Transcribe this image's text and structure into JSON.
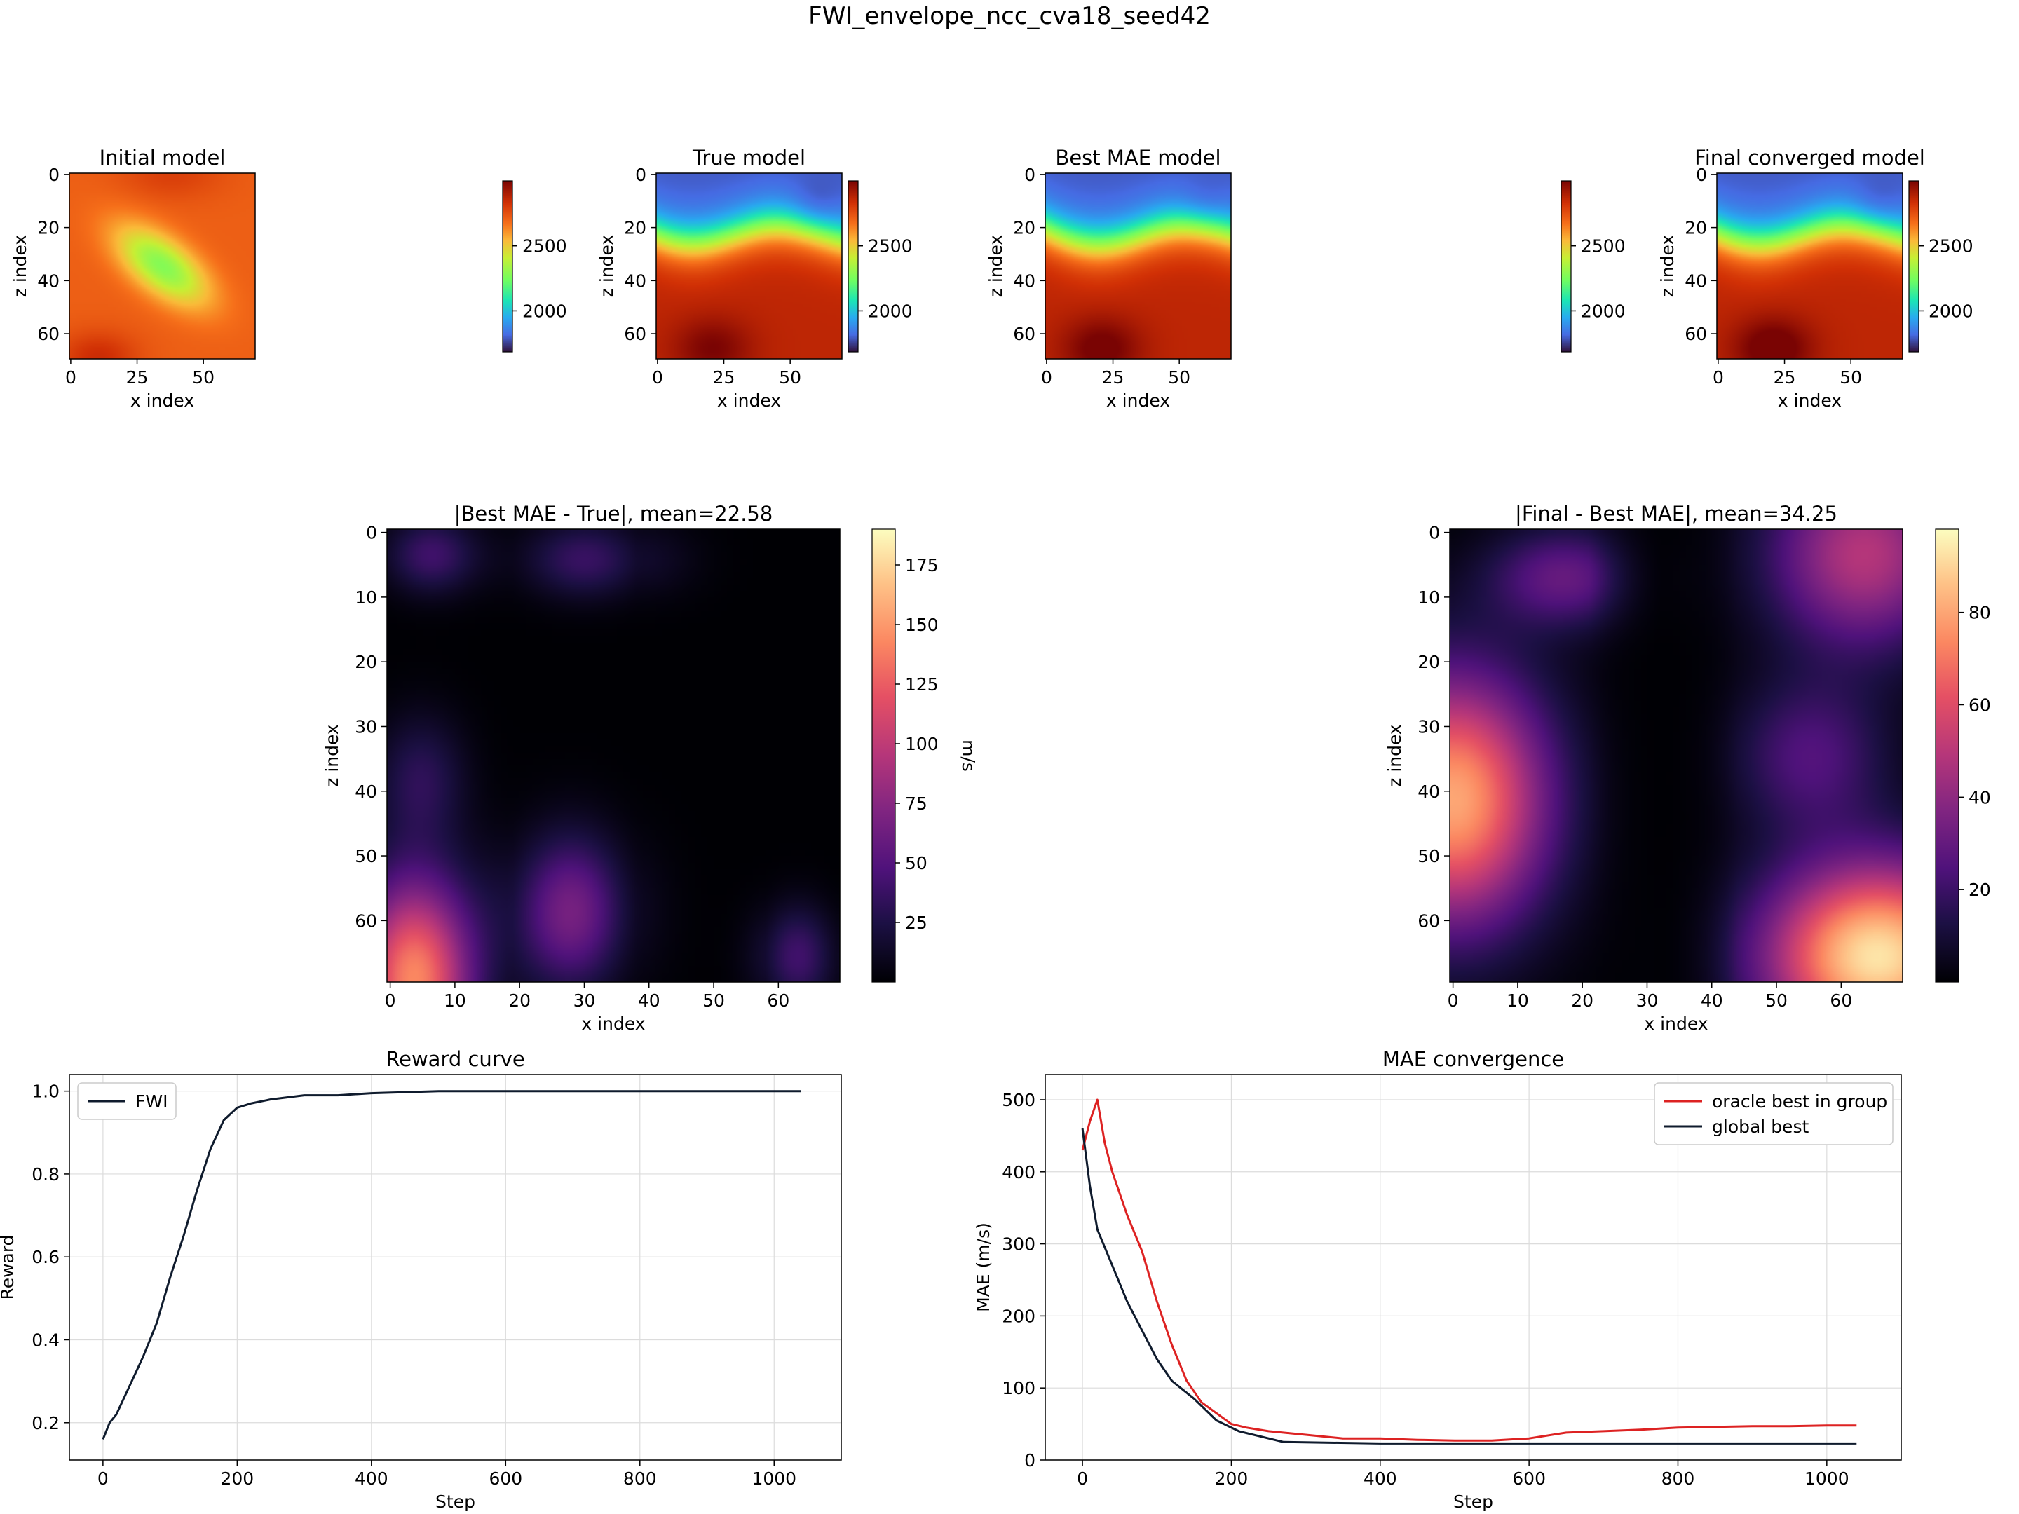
{
  "figure_title": "FWI_envelope_ncc_cva18_seed42",
  "chart_data": [
    {
      "type": "heatmap",
      "title": "Initial model",
      "xlabel": "x index",
      "ylabel": "z index",
      "xlim": [
        0,
        70
      ],
      "ylim": [
        0,
        70
      ],
      "xticks": [
        "0",
        "25",
        "50"
      ],
      "yticks": [
        "0",
        "20",
        "40",
        "60"
      ],
      "colormap": "turbo",
      "colorbar_ticks": [
        "2000",
        "2500"
      ],
      "description_field": "smooth reddish-orange background with greenish-yellow diagonal blob centered near x=35, z=35"
    },
    {
      "type": "heatmap",
      "title": "True model",
      "xlabel": "x index",
      "ylabel": "z index",
      "xticks": [
        "0",
        "25",
        "50"
      ],
      "yticks": [
        "0",
        "20",
        "40",
        "60"
      ],
      "colormap": "turbo",
      "colorbar_ticks": [
        "2000",
        "2500"
      ]
    },
    {
      "type": "heatmap",
      "title": "Best MAE model",
      "xlabel": "x index",
      "ylabel": "z index",
      "xticks": [
        "0",
        "25",
        "50"
      ],
      "yticks": [
        "0",
        "20",
        "40",
        "60"
      ],
      "colormap": "turbo",
      "colorbar_ticks": [
        "2000",
        "2500"
      ]
    },
    {
      "type": "heatmap",
      "title": "Final converged model",
      "xlabel": "x index",
      "ylabel": "z index",
      "xticks": [
        "0",
        "25",
        "50"
      ],
      "yticks": [
        "0",
        "20",
        "40",
        "60"
      ],
      "colormap": "turbo",
      "colorbar_ticks": [
        "2000",
        "2500"
      ]
    },
    {
      "type": "heatmap",
      "title": "|Best MAE - True|, mean=22.58",
      "xlabel": "x index",
      "ylabel": "z index",
      "xticks": [
        "0",
        "10",
        "20",
        "30",
        "40",
        "50",
        "60"
      ],
      "yticks": [
        "0",
        "10",
        "20",
        "30",
        "40",
        "50",
        "60"
      ],
      "colormap": "magma",
      "colorbar_label": "m/s",
      "colorbar_ticks": [
        "25",
        "50",
        "75",
        "100",
        "125",
        "150",
        "175"
      ],
      "colorbar_range": [
        0,
        190
      ]
    },
    {
      "type": "heatmap",
      "title": "|Final - Best MAE|, mean=34.25",
      "xlabel": "x index",
      "ylabel": "z index",
      "xticks": [
        "0",
        "10",
        "20",
        "30",
        "40",
        "50",
        "60"
      ],
      "yticks": [
        "0",
        "10",
        "20",
        "30",
        "40",
        "50",
        "60"
      ],
      "colormap": "magma",
      "colorbar_label": "m/s",
      "colorbar_ticks": [
        "20",
        "40",
        "60",
        "80"
      ],
      "colorbar_range": [
        0,
        98
      ]
    },
    {
      "type": "line",
      "title": "Reward curve",
      "xlabel": "Step",
      "ylabel": "Reward",
      "xlim": [
        -50,
        1100
      ],
      "ylim": [
        0.11,
        1.04
      ],
      "xticks": [
        0,
        200,
        400,
        600,
        800,
        1000
      ],
      "yticks": [
        0.2,
        0.4,
        0.6,
        0.8,
        1.0
      ],
      "ytick_labels": [
        "0.2",
        "0.4",
        "0.6",
        "0.8",
        "1.0"
      ],
      "grid": true,
      "legend": "top-left",
      "series": [
        {
          "name": "FWI",
          "color": "#0f1b2d",
          "x": [
            0,
            10,
            20,
            40,
            60,
            80,
            100,
            120,
            140,
            160,
            180,
            200,
            220,
            250,
            300,
            350,
            400,
            500,
            600,
            700,
            800,
            900,
            1040
          ],
          "y": [
            0.16,
            0.2,
            0.22,
            0.29,
            0.36,
            0.44,
            0.55,
            0.65,
            0.76,
            0.86,
            0.93,
            0.96,
            0.97,
            0.98,
            0.99,
            0.99,
            0.995,
            1.0,
            1.0,
            1.0,
            1.0,
            1.0,
            1.0
          ]
        }
      ]
    },
    {
      "type": "line",
      "title": "MAE convergence",
      "xlabel": "Step",
      "ylabel": "MAE (m/s)",
      "xlim": [
        -50,
        1100
      ],
      "ylim": [
        0,
        535
      ],
      "xticks": [
        0,
        200,
        400,
        600,
        800,
        1000
      ],
      "yticks": [
        0,
        100,
        200,
        300,
        400,
        500
      ],
      "grid": true,
      "legend": "top-right",
      "series": [
        {
          "name": "oracle best in group",
          "color": "#dd2222",
          "x": [
            0,
            10,
            20,
            30,
            40,
            60,
            80,
            100,
            120,
            140,
            160,
            180,
            200,
            220,
            250,
            300,
            350,
            400,
            450,
            500,
            550,
            600,
            650,
            700,
            750,
            800,
            850,
            900,
            950,
            1000,
            1040
          ],
          "y": [
            430,
            470,
            500,
            440,
            400,
            340,
            290,
            220,
            160,
            110,
            80,
            65,
            50,
            45,
            40,
            35,
            30,
            30,
            28,
            27,
            27,
            30,
            38,
            40,
            42,
            45,
            46,
            47,
            47,
            48,
            48
          ]
        },
        {
          "name": "global best",
          "color": "#0f1b2d",
          "x": [
            0,
            10,
            20,
            40,
            60,
            80,
            100,
            120,
            150,
            180,
            210,
            270,
            400,
            1040
          ],
          "y": [
            460,
            380,
            320,
            270,
            220,
            180,
            140,
            110,
            85,
            55,
            40,
            25,
            23,
            23
          ]
        }
      ]
    }
  ]
}
